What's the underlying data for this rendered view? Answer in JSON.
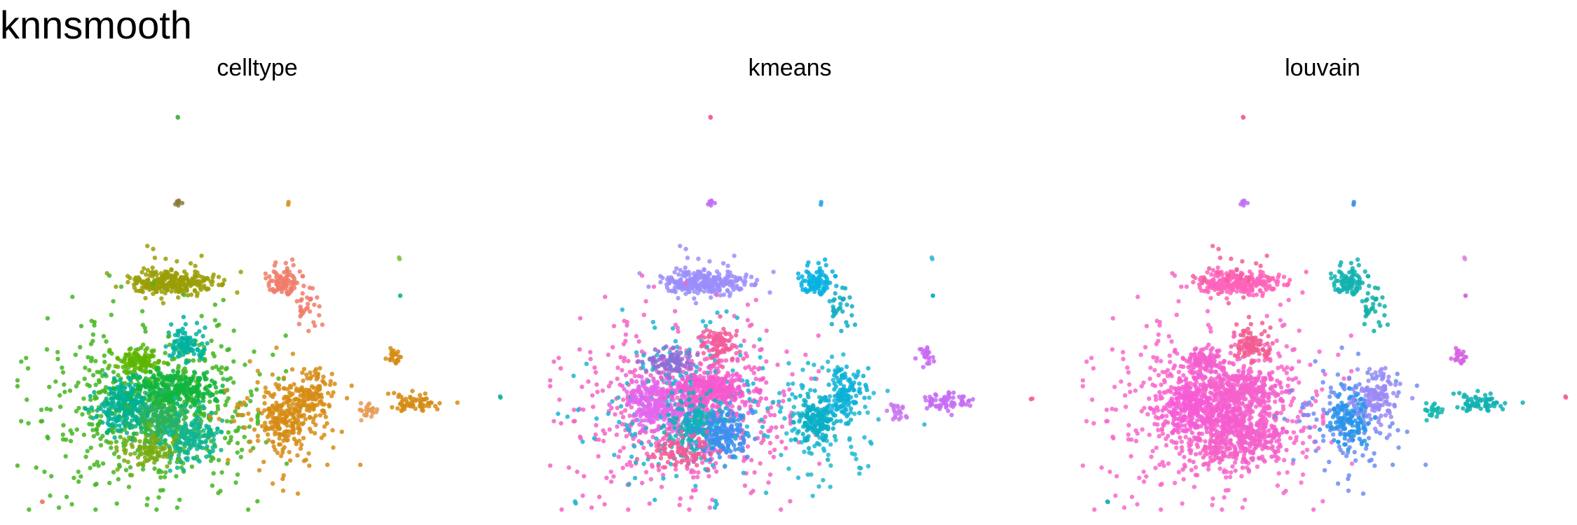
{
  "title": "knnsmooth",
  "chart_data": {
    "type": "scatter",
    "title": "knnsmooth",
    "xlabel": "",
    "ylabel": "",
    "grid": false,
    "legend": "none",
    "panels": [
      {
        "title": "celltype",
        "clusters": [
          {
            "color": "#4daf4a",
            "cx": 0.33,
            "cy": 0.05,
            "sx": 0.002,
            "sy": 0.002,
            "n": 2
          },
          {
            "color": "#8c7a3a",
            "cx": 0.33,
            "cy": 0.26,
            "sx": 0.003,
            "sy": 0.006,
            "n": 8
          },
          {
            "color": "#d68c14",
            "cx": 0.56,
            "cy": 0.26,
            "sx": 0.002,
            "sy": 0.002,
            "n": 2
          },
          {
            "color": "#9a9d06",
            "cx": 0.32,
            "cy": 0.45,
            "sx": 0.045,
            "sy": 0.013,
            "n": 260
          },
          {
            "color": "#9a9d06",
            "cx": 0.32,
            "cy": 0.42,
            "sx": 0.04,
            "sy": 0.03,
            "n": 25
          },
          {
            "color": "#f07c6a",
            "cx": 0.55,
            "cy": 0.45,
            "sx": 0.018,
            "sy": 0.02,
            "n": 90
          },
          {
            "color": "#f07c6a",
            "cx": 0.6,
            "cy": 0.52,
            "sx": 0.012,
            "sy": 0.03,
            "n": 30
          },
          {
            "color": "#7fc241",
            "cx": 0.79,
            "cy": 0.39,
            "sx": 0.002,
            "sy": 0.002,
            "n": 2
          },
          {
            "color": "#1fb884",
            "cx": 0.79,
            "cy": 0.48,
            "sx": 0.002,
            "sy": 0.002,
            "n": 2
          },
          {
            "color": "#43b620",
            "cx": 0.28,
            "cy": 0.75,
            "sx": 0.11,
            "sy": 0.1,
            "n": 650
          },
          {
            "color": "#00b094",
            "cx": 0.22,
            "cy": 0.75,
            "sx": 0.03,
            "sy": 0.03,
            "n": 220
          },
          {
            "color": "#11b53f",
            "cx": 0.33,
            "cy": 0.71,
            "sx": 0.04,
            "sy": 0.022,
            "n": 260
          },
          {
            "color": "#2cb05e",
            "cx": 0.3,
            "cy": 0.79,
            "sx": 0.03,
            "sy": 0.03,
            "n": 180
          },
          {
            "color": "#0fb592",
            "cx": 0.36,
            "cy": 0.82,
            "sx": 0.03,
            "sy": 0.03,
            "n": 150
          },
          {
            "color": "#00b1a0",
            "cx": 0.35,
            "cy": 0.6,
            "sx": 0.02,
            "sy": 0.02,
            "n": 90
          },
          {
            "color": "#5eb500",
            "cx": 0.25,
            "cy": 0.64,
            "sx": 0.025,
            "sy": 0.015,
            "n": 90
          },
          {
            "color": "#7aaa10",
            "cx": 0.27,
            "cy": 0.86,
            "sx": 0.03,
            "sy": 0.02,
            "n": 90
          },
          {
            "color": "#d68c14",
            "cx": 0.56,
            "cy": 0.77,
            "sx": 0.06,
            "sy": 0.07,
            "n": 130
          },
          {
            "color": "#d68c14",
            "cx": 0.55,
            "cy": 0.78,
            "sx": 0.02,
            "sy": 0.03,
            "n": 140
          },
          {
            "color": "#d68c14",
            "cx": 0.61,
            "cy": 0.72,
            "sx": 0.02,
            "sy": 0.03,
            "n": 110
          },
          {
            "color": "#d68c14",
            "cx": 0.78,
            "cy": 0.63,
            "sx": 0.008,
            "sy": 0.015,
            "n": 22
          },
          {
            "color": "#d68c14",
            "cx": 0.82,
            "cy": 0.74,
            "sx": 0.025,
            "sy": 0.012,
            "n": 65
          },
          {
            "color": "#e79a56",
            "cx": 0.72,
            "cy": 0.76,
            "sx": 0.012,
            "sy": 0.01,
            "n": 22
          },
          {
            "color": "#13b3a1",
            "cx": 1.0,
            "cy": 0.73,
            "sx": 0.002,
            "sy": 0.002,
            "n": 2
          },
          {
            "color": "#f07c6a",
            "cx": 0.05,
            "cy": 0.98,
            "sx": 0.002,
            "sy": 0.002,
            "n": 2
          }
        ]
      },
      {
        "title": "kmeans",
        "clusters": [
          {
            "color": "#f25ea3",
            "cx": 0.33,
            "cy": 0.05,
            "sx": 0.002,
            "sy": 0.002,
            "n": 2
          },
          {
            "color": "#c26df6",
            "cx": 0.33,
            "cy": 0.26,
            "sx": 0.003,
            "sy": 0.006,
            "n": 8
          },
          {
            "color": "#24a0ee",
            "cx": 0.56,
            "cy": 0.26,
            "sx": 0.002,
            "sy": 0.002,
            "n": 2
          },
          {
            "color": "#9b8efb",
            "cx": 0.32,
            "cy": 0.45,
            "sx": 0.045,
            "sy": 0.013,
            "n": 260
          },
          {
            "color": "#9b8efb",
            "cx": 0.32,
            "cy": 0.42,
            "sx": 0.04,
            "sy": 0.03,
            "n": 25
          },
          {
            "color": "#06b1e1",
            "cx": 0.55,
            "cy": 0.45,
            "sx": 0.018,
            "sy": 0.02,
            "n": 90
          },
          {
            "color": "#10aec2",
            "cx": 0.6,
            "cy": 0.52,
            "sx": 0.012,
            "sy": 0.03,
            "n": 30
          },
          {
            "color": "#38b8d8",
            "cx": 0.79,
            "cy": 0.39,
            "sx": 0.002,
            "sy": 0.002,
            "n": 2
          },
          {
            "color": "#0db4c5",
            "cx": 0.79,
            "cy": 0.48,
            "sx": 0.002,
            "sy": 0.002,
            "n": 2
          },
          {
            "color": "#f564c5",
            "cx": 0.28,
            "cy": 0.75,
            "sx": 0.11,
            "sy": 0.1,
            "n": 650
          },
          {
            "color": "#1ab6d5",
            "cx": 0.28,
            "cy": 0.75,
            "sx": 0.1,
            "sy": 0.09,
            "n": 220
          },
          {
            "color": "#e366ee",
            "cx": 0.22,
            "cy": 0.75,
            "sx": 0.03,
            "sy": 0.03,
            "n": 220
          },
          {
            "color": "#f858cf",
            "cx": 0.33,
            "cy": 0.71,
            "sx": 0.04,
            "sy": 0.022,
            "n": 260
          },
          {
            "color": "#12b2b8",
            "cx": 0.3,
            "cy": 0.79,
            "sx": 0.03,
            "sy": 0.03,
            "n": 180
          },
          {
            "color": "#3e8df0",
            "cx": 0.36,
            "cy": 0.82,
            "sx": 0.03,
            "sy": 0.03,
            "n": 150
          },
          {
            "color": "#f35c9b",
            "cx": 0.35,
            "cy": 0.6,
            "sx": 0.02,
            "sy": 0.02,
            "n": 90
          },
          {
            "color": "#8c6fd6",
            "cx": 0.25,
            "cy": 0.64,
            "sx": 0.025,
            "sy": 0.015,
            "n": 90
          },
          {
            "color": "#f25c95",
            "cx": 0.27,
            "cy": 0.86,
            "sx": 0.03,
            "sy": 0.02,
            "n": 90
          },
          {
            "color": "#1fb8d2",
            "cx": 0.56,
            "cy": 0.77,
            "sx": 0.06,
            "sy": 0.07,
            "n": 130
          },
          {
            "color": "#0bafc6",
            "cx": 0.55,
            "cy": 0.78,
            "sx": 0.02,
            "sy": 0.03,
            "n": 140
          },
          {
            "color": "#0bb0d8",
            "cx": 0.61,
            "cy": 0.72,
            "sx": 0.02,
            "sy": 0.03,
            "n": 110
          },
          {
            "color": "#c86af2",
            "cx": 0.78,
            "cy": 0.63,
            "sx": 0.008,
            "sy": 0.015,
            "n": 22
          },
          {
            "color": "#c66cf4",
            "cx": 0.82,
            "cy": 0.74,
            "sx": 0.025,
            "sy": 0.012,
            "n": 65
          },
          {
            "color": "#c877f0",
            "cx": 0.72,
            "cy": 0.76,
            "sx": 0.012,
            "sy": 0.01,
            "n": 22
          },
          {
            "color": "#f46292",
            "cx": 1.0,
            "cy": 0.73,
            "sx": 0.002,
            "sy": 0.002,
            "n": 2
          },
          {
            "color": "#14b6ca",
            "cx": 0.05,
            "cy": 0.98,
            "sx": 0.002,
            "sy": 0.002,
            "n": 2
          }
        ]
      },
      {
        "title": "louvain",
        "clusters": [
          {
            "color": "#f35e9e",
            "cx": 0.33,
            "cy": 0.05,
            "sx": 0.002,
            "sy": 0.002,
            "n": 2
          },
          {
            "color": "#c26df6",
            "cx": 0.33,
            "cy": 0.26,
            "sx": 0.003,
            "sy": 0.006,
            "n": 8
          },
          {
            "color": "#2a8ce8",
            "cx": 0.56,
            "cy": 0.26,
            "sx": 0.002,
            "sy": 0.002,
            "n": 2
          },
          {
            "color": "#ff63bb",
            "cx": 0.32,
            "cy": 0.45,
            "sx": 0.045,
            "sy": 0.013,
            "n": 260
          },
          {
            "color": "#f25e95",
            "cx": 0.32,
            "cy": 0.42,
            "sx": 0.04,
            "sy": 0.03,
            "n": 25
          },
          {
            "color": "#12b2b0",
            "cx": 0.55,
            "cy": 0.45,
            "sx": 0.018,
            "sy": 0.02,
            "n": 90
          },
          {
            "color": "#10b0a4",
            "cx": 0.6,
            "cy": 0.52,
            "sx": 0.012,
            "sy": 0.03,
            "n": 30
          },
          {
            "color": "#e381e0",
            "cx": 0.79,
            "cy": 0.39,
            "sx": 0.002,
            "sy": 0.002,
            "n": 2
          },
          {
            "color": "#d06bd8",
            "cx": 0.79,
            "cy": 0.48,
            "sx": 0.002,
            "sy": 0.002,
            "n": 2
          },
          {
            "color": "#f867cb",
            "cx": 0.28,
            "cy": 0.75,
            "sx": 0.11,
            "sy": 0.1,
            "n": 650
          },
          {
            "color": "#f75bd6",
            "cx": 0.22,
            "cy": 0.75,
            "sx": 0.03,
            "sy": 0.03,
            "n": 220
          },
          {
            "color": "#f562cc",
            "cx": 0.33,
            "cy": 0.71,
            "sx": 0.04,
            "sy": 0.022,
            "n": 260
          },
          {
            "color": "#f45dcf",
            "cx": 0.3,
            "cy": 0.79,
            "sx": 0.03,
            "sy": 0.03,
            "n": 180
          },
          {
            "color": "#f360cb",
            "cx": 0.36,
            "cy": 0.82,
            "sx": 0.03,
            "sy": 0.03,
            "n": 150
          },
          {
            "color": "#f25c90",
            "cx": 0.35,
            "cy": 0.6,
            "sx": 0.02,
            "sy": 0.02,
            "n": 90
          },
          {
            "color": "#f55fcc",
            "cx": 0.25,
            "cy": 0.64,
            "sx": 0.025,
            "sy": 0.015,
            "n": 90
          },
          {
            "color": "#f462c6",
            "cx": 0.27,
            "cy": 0.86,
            "sx": 0.03,
            "sy": 0.02,
            "n": 90
          },
          {
            "color": "#6f8df2",
            "cx": 0.56,
            "cy": 0.77,
            "sx": 0.06,
            "sy": 0.07,
            "n": 130
          },
          {
            "color": "#2a94ea",
            "cx": 0.55,
            "cy": 0.78,
            "sx": 0.02,
            "sy": 0.03,
            "n": 140
          },
          {
            "color": "#9b8af6",
            "cx": 0.61,
            "cy": 0.72,
            "sx": 0.02,
            "sy": 0.03,
            "n": 110
          },
          {
            "color": "#d563e2",
            "cx": 0.78,
            "cy": 0.63,
            "sx": 0.008,
            "sy": 0.015,
            "n": 22
          },
          {
            "color": "#10b0b2",
            "cx": 0.82,
            "cy": 0.74,
            "sx": 0.025,
            "sy": 0.012,
            "n": 65
          },
          {
            "color": "#12b6b0",
            "cx": 0.72,
            "cy": 0.76,
            "sx": 0.012,
            "sy": 0.01,
            "n": 22
          },
          {
            "color": "#f45e93",
            "cx": 1.0,
            "cy": 0.73,
            "sx": 0.002,
            "sy": 0.002,
            "n": 2
          },
          {
            "color": "#17b3b8",
            "cx": 0.05,
            "cy": 0.98,
            "sx": 0.002,
            "sy": 0.002,
            "n": 2
          }
        ]
      }
    ]
  }
}
